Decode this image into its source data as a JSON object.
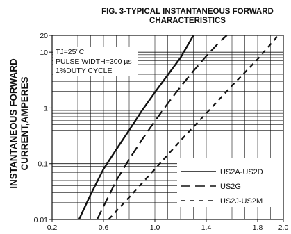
{
  "colors": {
    "background": "#ffffff",
    "ink": "#111111"
  },
  "chart_data": {
    "type": "line",
    "title_line1": "FIG. 3-TYPICAL INSTANTANEOUS FORWARD",
    "title_line2": "CHARACTERISTICS",
    "ylabel_line1": "INSTANTANEOUS FORWARD",
    "ylabel_line2": "CURRENT,AMPERES",
    "xlabel": "",
    "x_scale": "linear",
    "y_scale": "log",
    "xlim": [
      0.2,
      2.0
    ],
    "ylim": [
      0.01,
      20
    ],
    "x_ticks": [
      0.2,
      0.6,
      1.0,
      1.4,
      1.8,
      2.0
    ],
    "x_tick_labels": [
      "0.2",
      "0.6",
      "1.0",
      "1.4",
      "1.8",
      "2.0"
    ],
    "y_ticks": [
      0.01,
      0.1,
      1,
      10,
      20
    ],
    "y_tick_labels": [
      "0.01",
      "0.1",
      "1",
      "10",
      "20"
    ],
    "grid": true,
    "annotations": [
      "TJ=25°C",
      "PULSE WIDTH=300 µs",
      "1%DUTY CYCLE"
    ],
    "legend_position": "lower-right",
    "series": [
      {
        "name": "US2A-US2D",
        "style": "solid",
        "x": [
          0.41,
          0.5,
          0.6,
          0.7,
          0.8,
          0.9,
          1.0,
          1.1,
          1.2,
          1.3
        ],
        "y": [
          0.01,
          0.028,
          0.08,
          0.18,
          0.4,
          0.9,
          1.9,
          3.9,
          8.0,
          20
        ]
      },
      {
        "name": "US2G",
        "style": "long-dash",
        "x": [
          0.55,
          0.7,
          0.8,
          0.9,
          1.0,
          1.1,
          1.2,
          1.3,
          1.4,
          1.5,
          1.56
        ],
        "y": [
          0.01,
          0.05,
          0.12,
          0.27,
          0.58,
          1.2,
          2.4,
          4.6,
          8.5,
          15,
          20
        ]
      },
      {
        "name": "US2J-US2M",
        "style": "short-dash",
        "x": [
          0.64,
          0.8,
          1.0,
          1.2,
          1.4,
          1.6,
          1.8,
          1.96
        ],
        "y": [
          0.01,
          0.025,
          0.08,
          0.26,
          0.8,
          2.5,
          7.5,
          20
        ]
      }
    ]
  }
}
